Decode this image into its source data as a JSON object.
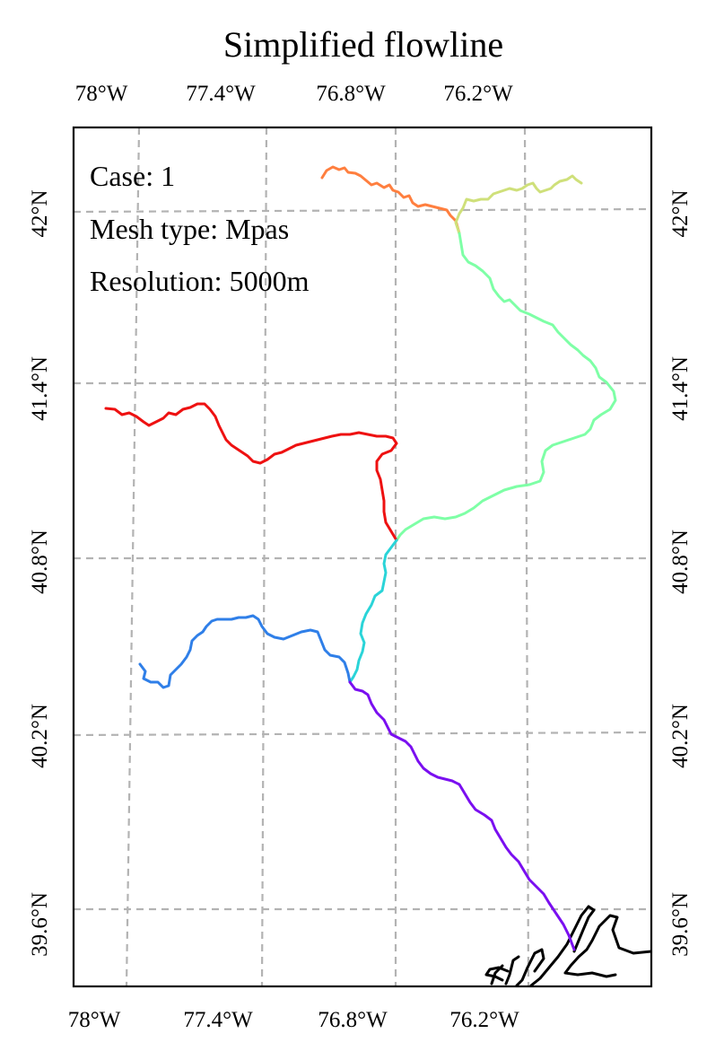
{
  "title": "Simplified flowline",
  "annotations": {
    "case": "Case: 1",
    "mesh_type": "Mesh type: Mpas",
    "resolution": "Resolution: 5000m"
  },
  "axes": {
    "top_lon_labels": [
      "78°W",
      "77.4°W",
      "76.8°W",
      "76.2°W"
    ],
    "bottom_lon_labels": [
      "78°W",
      "77.4°W",
      "76.8°W",
      "76.2°W"
    ],
    "left_lat_labels": [
      "42°N",
      "41.4°N",
      "40.8°N",
      "40.2°N",
      "39.6°N"
    ],
    "right_lat_labels": [
      "42°N",
      "41.4°N",
      "40.8°N",
      "40.2°N",
      "39.6°N"
    ]
  },
  "chart_data": {
    "type": "map",
    "projection": "lambert-conformal-like (tilted graticule)",
    "gridlines": true,
    "grid_style": "dashed gray",
    "lon_ticks": [
      -78.0,
      -77.4,
      -76.8,
      -76.2
    ],
    "lat_ticks": [
      42.0,
      41.4,
      40.8,
      40.2,
      39.6
    ],
    "extent": {
      "lon_min": -78.1,
      "lon_max": -75.5,
      "lat_min": 39.35,
      "lat_max": 42.3
    },
    "segments": [
      {
        "color": "#ff7f3f",
        "lonlat": [
          [
            -76.87,
            42.12
          ],
          [
            -76.82,
            42.14
          ],
          [
            -76.75,
            42.12
          ],
          [
            -76.7,
            42.1
          ],
          [
            -76.65,
            42.08
          ],
          [
            -76.58,
            42.05
          ],
          [
            -76.5,
            42.01
          ],
          [
            -76.42,
            42.0
          ],
          [
            -76.35,
            42.0
          ],
          [
            -76.3,
            41.97
          ],
          [
            -76.28,
            41.93
          ]
        ]
      },
      {
        "color": "#cfe07a",
        "lonlat": [
          [
            -76.28,
            41.93
          ],
          [
            -76.27,
            41.99
          ],
          [
            -76.2,
            42.03
          ],
          [
            -76.13,
            42.02
          ],
          [
            -76.03,
            42.04
          ],
          [
            -75.93,
            42.07
          ],
          [
            -75.85,
            42.1
          ],
          [
            -75.8,
            42.08
          ]
        ]
      },
      {
        "color": "#7effa6",
        "lonlat": [
          [
            -76.28,
            41.93
          ],
          [
            -76.26,
            41.85
          ],
          [
            -76.2,
            41.78
          ],
          [
            -76.12,
            41.72
          ],
          [
            -76.02,
            41.66
          ],
          [
            -75.9,
            41.6
          ],
          [
            -75.78,
            41.5
          ],
          [
            -75.7,
            41.38
          ],
          [
            -75.72,
            41.28
          ],
          [
            -75.8,
            41.22
          ],
          [
            -75.92,
            41.17
          ],
          [
            -76.0,
            41.08
          ],
          [
            -76.05,
            40.98
          ],
          [
            -76.15,
            40.94
          ],
          [
            -76.27,
            40.92
          ],
          [
            -76.4,
            40.91
          ],
          [
            -76.55,
            40.88
          ],
          [
            -76.65,
            40.83
          ]
        ]
      },
      {
        "color": "#ee1111",
        "lonlat": [
          [
            -77.95,
            41.32
          ],
          [
            -77.88,
            41.31
          ],
          [
            -77.8,
            41.29
          ],
          [
            -77.7,
            41.29
          ],
          [
            -77.6,
            41.3
          ],
          [
            -77.52,
            41.31
          ],
          [
            -77.45,
            41.27
          ],
          [
            -77.4,
            41.16
          ],
          [
            -77.3,
            41.12
          ],
          [
            -77.2,
            41.14
          ],
          [
            -77.08,
            41.16
          ],
          [
            -76.98,
            41.17
          ],
          [
            -76.88,
            41.18
          ],
          [
            -76.76,
            41.19
          ],
          [
            -76.66,
            41.18
          ],
          [
            -76.65,
            41.15
          ],
          [
            -76.72,
            41.1
          ],
          [
            -76.73,
            41.02
          ],
          [
            -76.71,
            40.94
          ],
          [
            -76.7,
            40.87
          ],
          [
            -76.65,
            40.83
          ]
        ]
      },
      {
        "color": "#2ad4d8",
        "lonlat": [
          [
            -76.65,
            40.83
          ],
          [
            -76.68,
            40.75
          ],
          [
            -76.7,
            40.68
          ],
          [
            -76.74,
            40.6
          ],
          [
            -76.77,
            40.52
          ],
          [
            -76.78,
            40.44
          ],
          [
            -76.81,
            40.37
          ]
        ]
      },
      {
        "color": "#2f7fe8",
        "lonlat": [
          [
            -77.72,
            40.42
          ],
          [
            -77.68,
            40.37
          ],
          [
            -77.64,
            40.35
          ],
          [
            -77.6,
            40.39
          ],
          [
            -77.55,
            40.44
          ],
          [
            -77.48,
            40.49
          ],
          [
            -77.4,
            40.53
          ],
          [
            -77.32,
            40.52
          ],
          [
            -77.27,
            40.48
          ],
          [
            -77.18,
            40.46
          ],
          [
            -77.08,
            40.46
          ],
          [
            -76.98,
            40.43
          ],
          [
            -76.92,
            40.39
          ],
          [
            -76.86,
            40.39
          ],
          [
            -76.81,
            40.37
          ]
        ]
      },
      {
        "color": "#7a0ff0",
        "lonlat": [
          [
            -76.81,
            40.37
          ],
          [
            -76.76,
            40.33
          ],
          [
            -76.72,
            40.28
          ],
          [
            -76.66,
            40.23
          ],
          [
            -76.58,
            40.17
          ],
          [
            -76.5,
            40.1
          ],
          [
            -76.42,
            40.03
          ],
          [
            -76.32,
            39.95
          ],
          [
            -76.24,
            39.87
          ],
          [
            -76.17,
            39.77
          ],
          [
            -76.1,
            39.66
          ],
          [
            -76.03,
            39.55
          ],
          [
            -75.98,
            39.47
          ]
        ]
      }
    ],
    "coastline": "black outline (Chesapeake Bay region, bottom-right)"
  }
}
